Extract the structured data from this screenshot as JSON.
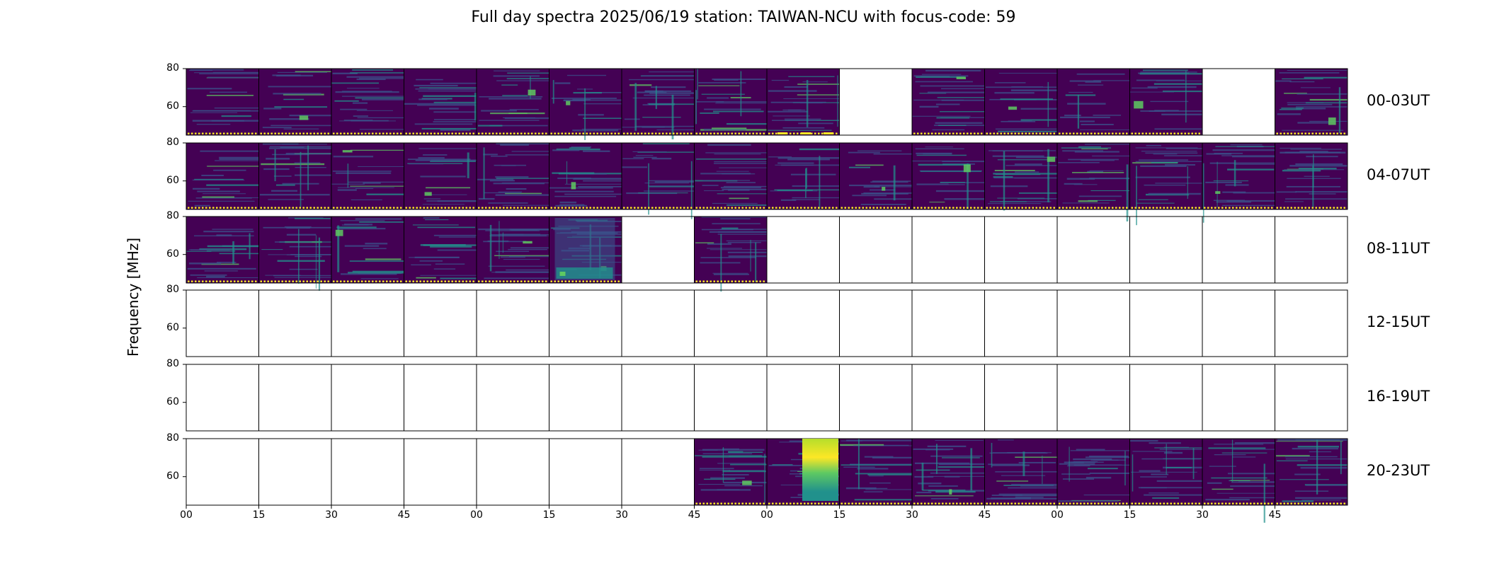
{
  "title": "Full day spectra 2025/06/19 station: TAIWAN-NCU with focus-code: 59",
  "colors": {
    "bg": "#440154",
    "mid": "#3b528b",
    "teal": "#21918c",
    "green": "#5ec962",
    "yellow": "#fde725"
  },
  "chart_data": {
    "type": "heatmap",
    "title": "Full day spectra 2025/06/19 station: TAIWAN-NCU with focus-code: 59",
    "ylabel": "Frequency [MHz]",
    "xlabel": "",
    "ylim": [
      45,
      80
    ],
    "yticks": [
      "80",
      "60"
    ],
    "xticks": [
      "00",
      "15",
      "30",
      "45",
      "00",
      "15",
      "30",
      "45",
      "00",
      "15",
      "30",
      "45",
      "00",
      "15",
      "30",
      "45"
    ],
    "rows": [
      {
        "label": "00-03UT",
        "panels": [
          1,
          1,
          1,
          1,
          1,
          1,
          1,
          1,
          1,
          0,
          1,
          1,
          1,
          1,
          0,
          1
        ]
      },
      {
        "label": "04-07UT",
        "panels": [
          1,
          1,
          1,
          1,
          1,
          1,
          1,
          1,
          1,
          1,
          1,
          1,
          1,
          1,
          1,
          1
        ]
      },
      {
        "label": "08-11UT",
        "panels": [
          1,
          1,
          1,
          1,
          1,
          1,
          0,
          1,
          0,
          0,
          0,
          0,
          0,
          0,
          0,
          0
        ]
      },
      {
        "label": "12-15UT",
        "panels": [
          0,
          0,
          0,
          0,
          0,
          0,
          0,
          0,
          0,
          0,
          0,
          0,
          0,
          0,
          0,
          0
        ]
      },
      {
        "label": "16-19UT",
        "panels": [
          0,
          0,
          0,
          0,
          0,
          0,
          0,
          0,
          0,
          0,
          0,
          0,
          0,
          0,
          0,
          0
        ]
      },
      {
        "label": "20-23UT",
        "panels": [
          0,
          0,
          0,
          0,
          0,
          0,
          0,
          1,
          1,
          1,
          1,
          1,
          1,
          1,
          1,
          1
        ]
      }
    ]
  }
}
